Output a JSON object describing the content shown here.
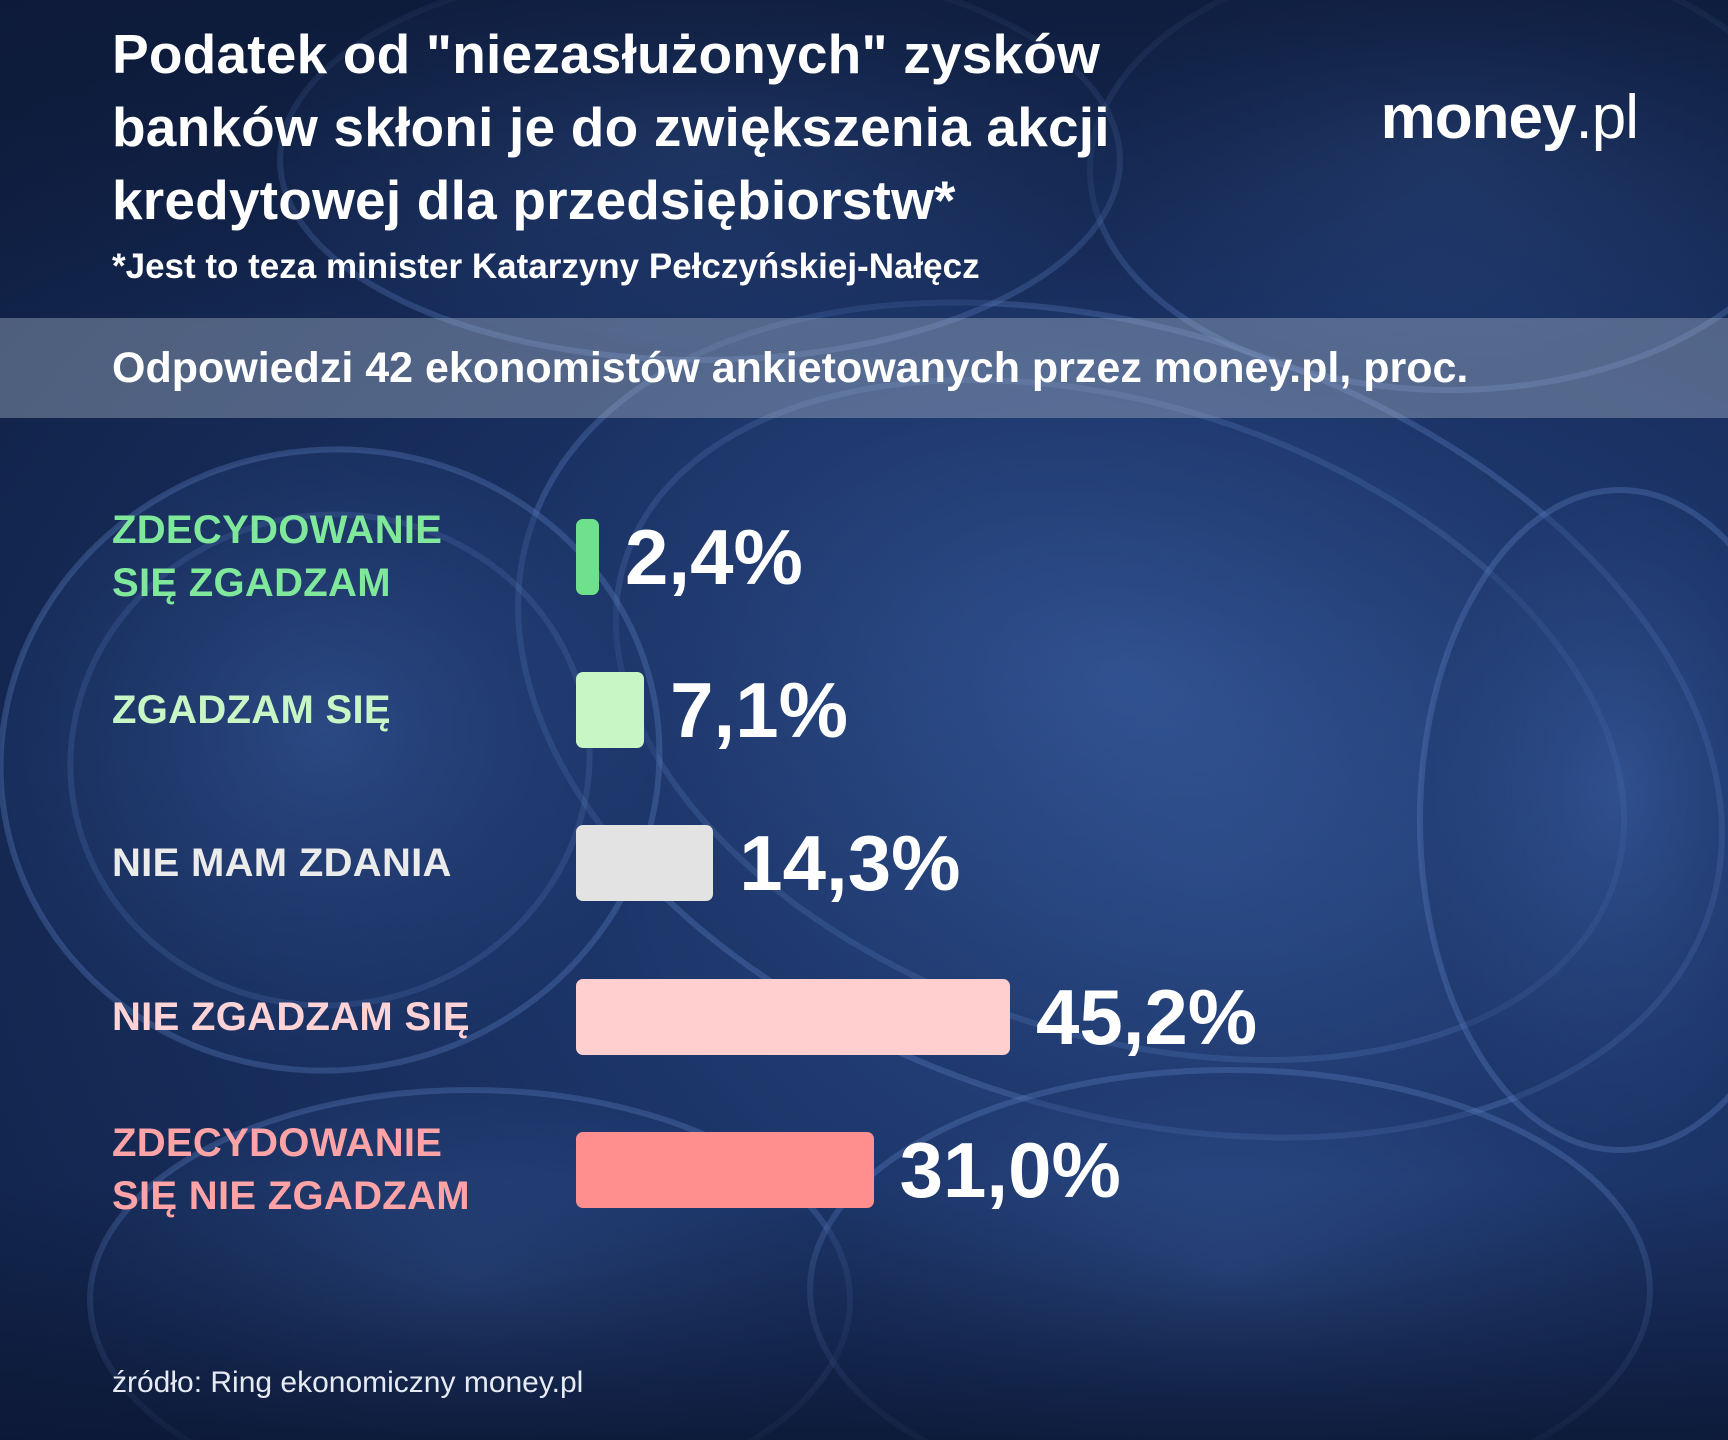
{
  "title_lines": [
    "Podatek od \"niezasłużonych\" zysków",
    "banków skłoni je do zwiększenia akcji",
    "kredytowej dla przedsiębiorstw*"
  ],
  "footnote": "*Jest to teza minister Katarzyny Pełczyńskiej-Nałęcz",
  "logo": {
    "brand": "money",
    "tld": ".pl"
  },
  "subtitle": "Odpowiedzi 42 ekonomistów ankietowanych przez money.pl, proc.",
  "source": "źródło: Ring ekonomiczny money.pl",
  "colors": {
    "strongly_agree": "#6fe08c",
    "agree": "#c8f7c5",
    "no_opinion": "#e3e3e3",
    "disagree": "#ffcfd0",
    "strongly_disagree": "#ff8e8e"
  },
  "chart_data": {
    "type": "bar",
    "orientation": "horizontal",
    "categories": [
      [
        "ZDECYDOWANIE",
        "SIĘ ZGADZAM"
      ],
      [
        "ZGADZAM SIĘ"
      ],
      [
        "NIE MAM ZDANIA"
      ],
      [
        "NIE ZGADZAM SIĘ"
      ],
      [
        "ZDECYDOWANIE",
        "SIĘ NIE ZGADZAM"
      ]
    ],
    "values": [
      2.4,
      7.1,
      14.3,
      45.2,
      31.0
    ],
    "value_labels": [
      "2,4%",
      "7,1%",
      "14,3%",
      "45,2%",
      "31,0%"
    ],
    "bar_colors": [
      "#6fe08c",
      "#c8f7c5",
      "#e3e3e3",
      "#ffcfd0",
      "#ff8e8e"
    ],
    "label_colors": [
      "#7fe89a",
      "#c8f7c5",
      "#ebebeb",
      "#ffd3d5",
      "#ffa3a6"
    ],
    "xlim": [
      0,
      45.2
    ],
    "grid": false
  }
}
